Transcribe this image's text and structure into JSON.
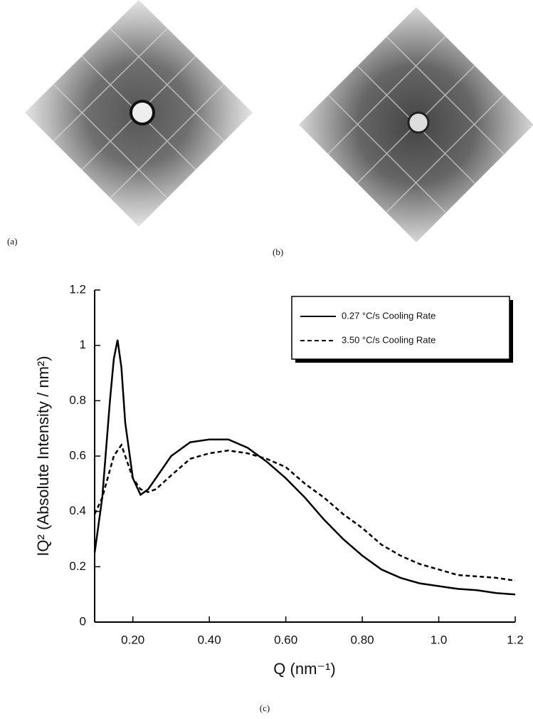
{
  "panel_labels": [
    "(a)",
    "(b)",
    "(c)"
  ],
  "chart_data": {
    "type": "line",
    "xlabel": "Q (nm⁻¹)",
    "ylabel": "IQ² (Absolute Intensity / nm²)",
    "x": [
      0.1,
      0.12,
      0.14,
      0.15,
      0.16,
      0.17,
      0.18,
      0.2,
      0.22,
      0.24,
      0.26,
      0.3,
      0.35,
      0.4,
      0.45,
      0.5,
      0.55,
      0.6,
      0.65,
      0.7,
      0.75,
      0.8,
      0.85,
      0.9,
      0.95,
      1.0,
      1.05,
      1.1,
      1.15,
      1.2
    ],
    "series": [
      {
        "name": "0.27 °C/s Cooling Rate",
        "color": "#000000",
        "style": "solid",
        "values": [
          0.25,
          0.45,
          0.8,
          0.95,
          1.02,
          0.92,
          0.72,
          0.52,
          0.46,
          0.48,
          0.52,
          0.6,
          0.65,
          0.66,
          0.66,
          0.63,
          0.58,
          0.52,
          0.45,
          0.37,
          0.3,
          0.24,
          0.19,
          0.16,
          0.14,
          0.13,
          0.12,
          0.115,
          0.105,
          0.1
        ]
      },
      {
        "name": "3.50 °C/s Cooling Rate",
        "color": "#000000",
        "style": "dashed",
        "values": [
          0.39,
          0.45,
          0.55,
          0.6,
          0.62,
          0.64,
          0.6,
          0.52,
          0.48,
          0.47,
          0.48,
          0.53,
          0.59,
          0.61,
          0.62,
          0.61,
          0.59,
          0.56,
          0.5,
          0.45,
          0.39,
          0.34,
          0.28,
          0.24,
          0.21,
          0.19,
          0.17,
          0.165,
          0.16,
          0.15
        ]
      }
    ],
    "xlim": [
      0.1,
      1.2
    ],
    "xticks": [
      {
        "value": 0.2,
        "label": "0.20"
      },
      {
        "value": 0.4,
        "label": "0.40"
      },
      {
        "value": 0.6,
        "label": "0.60"
      },
      {
        "value": 0.8,
        "label": "0.80"
      },
      {
        "value": 1,
        "label": "1.0"
      },
      1.2
    ],
    "ylim": [
      0,
      1.2
    ],
    "yticks": [
      0,
      0.2,
      0.4,
      0.6,
      0.8,
      1,
      1.2
    ],
    "legend": "upper right"
  }
}
